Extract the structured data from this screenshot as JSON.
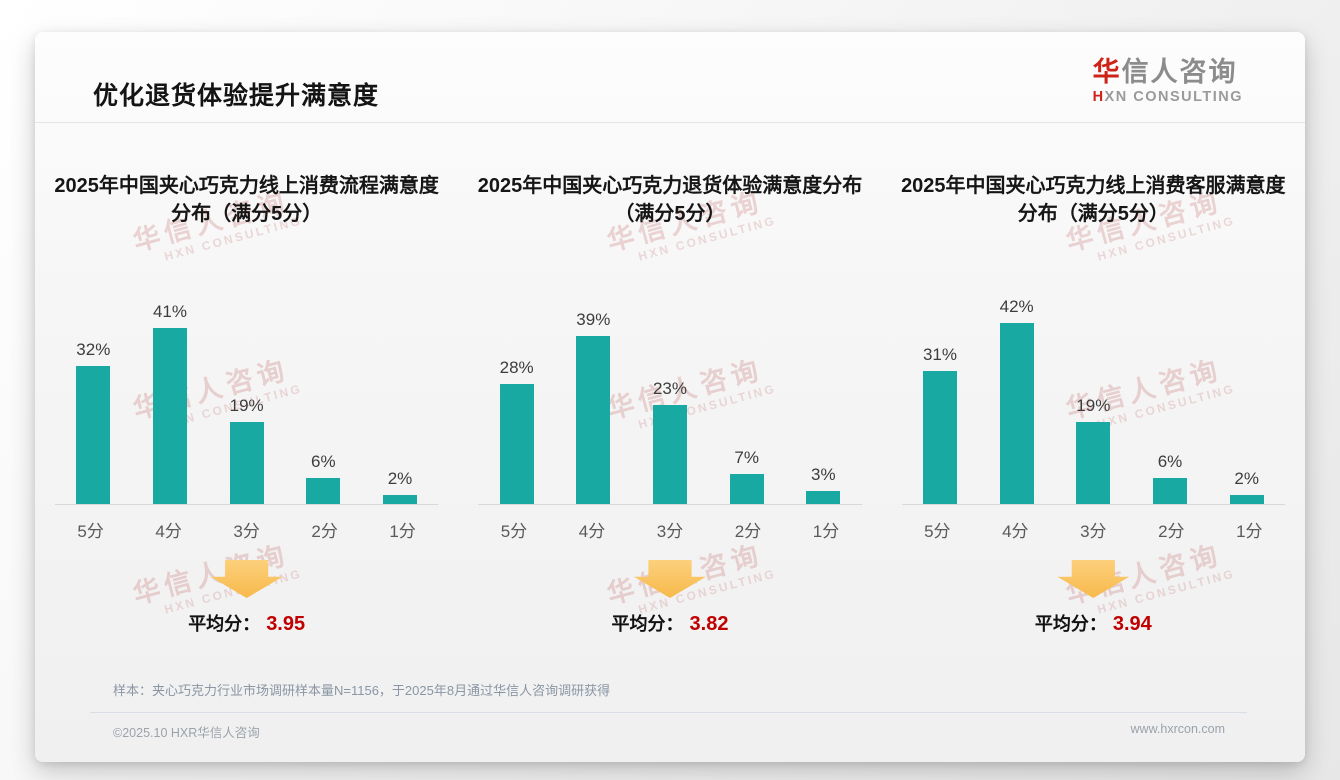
{
  "header": {
    "title": "优化退货体验提升满意度",
    "logo": {
      "accent": "华",
      "name_rest": "信人咨询",
      "tagline_accent": "H",
      "tagline_rest": "XN CONSULTING"
    }
  },
  "watermark": {
    "line1": "华信人咨询",
    "line2": "HXN CONSULTING"
  },
  "chart_data": [
    {
      "type": "bar",
      "title": "2025年中国夹心巧克力线上消费流程满意度分布（满分5分）",
      "categories": [
        "5分",
        "4分",
        "3分",
        "2分",
        "1分"
      ],
      "values": [
        32,
        41,
        19,
        6,
        2
      ],
      "value_labels": [
        "32%",
        "41%",
        "19%",
        "6%",
        "2%"
      ],
      "ylim": [
        0,
        45
      ],
      "grid": false,
      "bar_color": "#18a9a3",
      "average_label": "平均分：",
      "average_value": "3.95"
    },
    {
      "type": "bar",
      "title": "2025年中国夹心巧克力退货体验满意度分布（满分5分）",
      "categories": [
        "5分",
        "4分",
        "3分",
        "2分",
        "1分"
      ],
      "values": [
        28,
        39,
        23,
        7,
        3
      ],
      "value_labels": [
        "28%",
        "39%",
        "23%",
        "7%",
        "3%"
      ],
      "ylim": [
        0,
        45
      ],
      "grid": false,
      "bar_color": "#18a9a3",
      "average_label": "平均分：",
      "average_value": "3.82"
    },
    {
      "type": "bar",
      "title": "2025年中国夹心巧克力线上消费客服满意度分布（满分5分）",
      "categories": [
        "5分",
        "4分",
        "3分",
        "2分",
        "1分"
      ],
      "values": [
        31,
        42,
        19,
        6,
        2
      ],
      "value_labels": [
        "31%",
        "42%",
        "19%",
        "6%",
        "2%"
      ],
      "ylim": [
        0,
        45
      ],
      "grid": false,
      "bar_color": "#18a9a3",
      "average_label": "平均分：",
      "average_value": "3.94"
    }
  ],
  "footer": {
    "sample_note": "样本：夹心巧克力行业市场调研样本量N=1156，于2025年8月通过华信人咨询调研获得",
    "copyright": "©2025.10 HXR华信人咨询",
    "website": "www.hxrcon.com"
  },
  "colors": {
    "bar": "#18a9a3",
    "average_value_red": "#c00000",
    "arrow_orange": "#f7b94a",
    "logo_red": "#cf2318"
  }
}
